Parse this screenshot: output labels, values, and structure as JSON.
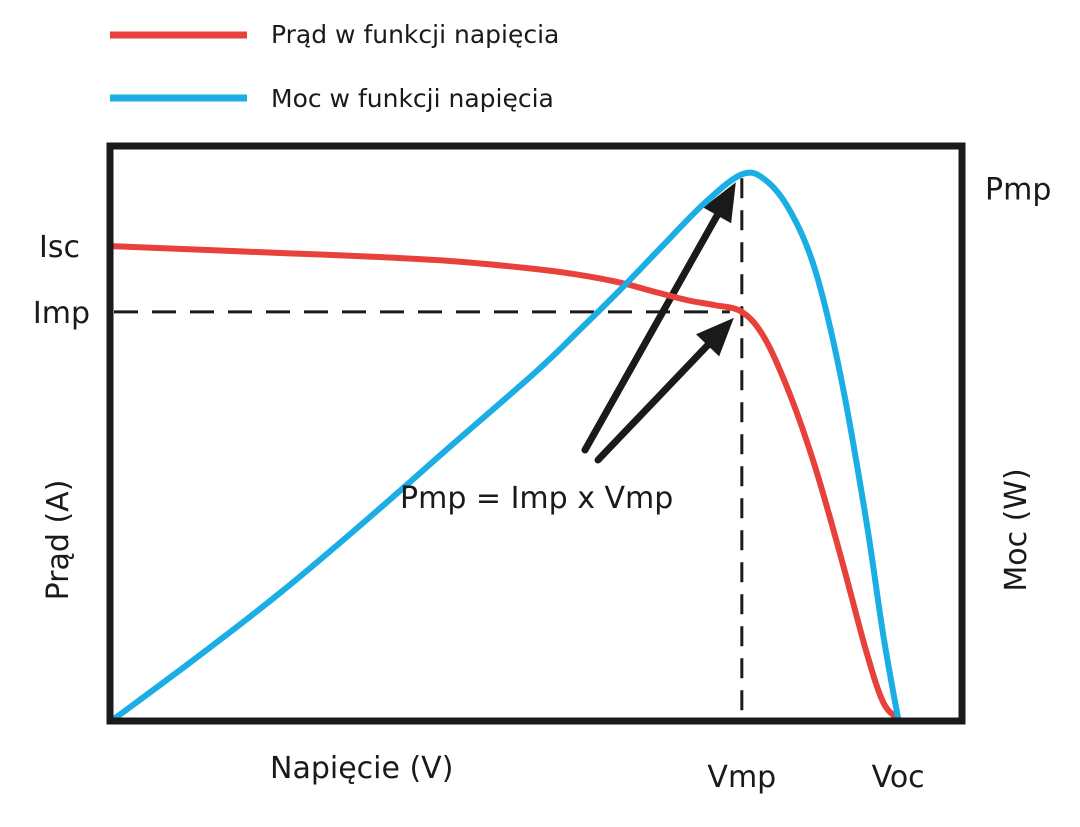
{
  "chart_data": {
    "type": "line",
    "title": "",
    "legend": {
      "placement": "top-left",
      "entries": [
        {
          "label": "Prąd w funkcji napięcia",
          "color": "#e8403a"
        },
        {
          "label": "Moc w funkcji napięcia",
          "color": "#1aaee5"
        }
      ]
    },
    "xlabel": "Napięcie (V)",
    "ylabel_left": "Prąd (A)",
    "ylabel_right": "Moc (W)",
    "xlim": [
      0,
      100
    ],
    "ylim_current": [
      0,
      100
    ],
    "ylim_power": [
      0,
      100
    ],
    "x_ticks": [
      {
        "label": "Vmp",
        "value": 74.3
      },
      {
        "label": "Voc",
        "value": 92.8
      }
    ],
    "y_ticks_left": [
      {
        "label": "Isc",
        "value": 82.8
      },
      {
        "label": "Imp",
        "value": 71.3
      }
    ],
    "y_ticks_right": [
      {
        "label": "Pmp",
        "value": 95.4
      }
    ],
    "annotation": "Pmp = Imp x Vmp",
    "series": [
      {
        "name": "Prąd w funkcji napięcia",
        "axis": "current",
        "color": "#e8403a",
        "x": [
          0,
          10,
          20,
          30,
          40,
          50,
          55,
          60,
          64,
          68,
          71,
          74.3,
          77,
          80,
          83,
          86,
          89,
          91,
          92.8
        ],
        "y": [
          82.8,
          82.2,
          81.6,
          81,
          80.2,
          78.8,
          77.8,
          76.4,
          74.8,
          73.3,
          72.5,
          71.3,
          66.7,
          56.8,
          44,
          28.5,
          12,
          3,
          0
        ]
      },
      {
        "name": "Moc w funkcji napięcia",
        "axis": "power",
        "color": "#1aaee5",
        "x": [
          0,
          10,
          20,
          30,
          40,
          50,
          55,
          60,
          65,
          70,
          74.3,
          77,
          80,
          83,
          86,
          89,
          91,
          92.8
        ],
        "y": [
          0,
          11,
          22.5,
          35,
          48,
          60.9,
          68,
          75.3,
          83,
          90.5,
          95.4,
          94.5,
          89,
          78.5,
          60,
          35,
          15,
          0
        ]
      }
    ]
  }
}
